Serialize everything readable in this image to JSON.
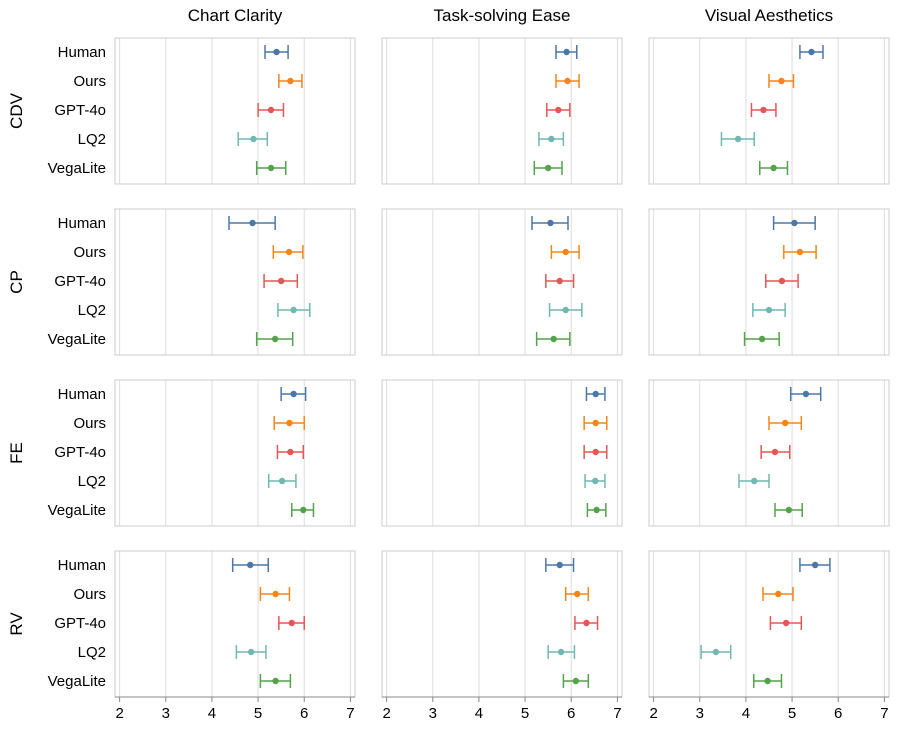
{
  "chart_data": {
    "type": "errorbar-grid",
    "columns": [
      "Chart Clarity",
      "Task-solving Ease",
      "Visual Aesthetics"
    ],
    "rows": [
      "CDV",
      "CP",
      "FE",
      "RV"
    ],
    "categories": [
      "Human",
      "Ours",
      "GPT-4o",
      "LQ2",
      "VegaLite"
    ],
    "colors": {
      "Human": "#4c78a8",
      "Ours": "#f58518",
      "GPT-4o": "#e45756",
      "LQ2": "#72b7b2",
      "VegaLite": "#54a24b"
    },
    "x_ticks": [
      "2",
      "3",
      "4",
      "5",
      "6",
      "7"
    ],
    "xlim": [
      1.9,
      7.1
    ],
    "grid_color": "#dddddd",
    "frame_color": "#cccccc",
    "panels": [
      {
        "row": "CDV",
        "col": "Chart Clarity",
        "points": [
          {
            "cat": "Human",
            "mean": 5.4,
            "lo": 5.15,
            "hi": 5.65
          },
          {
            "cat": "Ours",
            "mean": 5.7,
            "lo": 5.45,
            "hi": 5.95
          },
          {
            "cat": "GPT-4o",
            "mean": 5.28,
            "lo": 5.0,
            "hi": 5.55
          },
          {
            "cat": "LQ2",
            "mean": 4.9,
            "lo": 4.57,
            "hi": 5.2
          },
          {
            "cat": "VegaLite",
            "mean": 5.28,
            "lo": 4.97,
            "hi": 5.6
          }
        ]
      },
      {
        "row": "CDV",
        "col": "Task-solving Ease",
        "points": [
          {
            "cat": "Human",
            "mean": 5.9,
            "lo": 5.67,
            "hi": 6.12
          },
          {
            "cat": "Ours",
            "mean": 5.92,
            "lo": 5.67,
            "hi": 6.17
          },
          {
            "cat": "GPT-4o",
            "mean": 5.72,
            "lo": 5.47,
            "hi": 5.97
          },
          {
            "cat": "LQ2",
            "mean": 5.57,
            "lo": 5.3,
            "hi": 5.83
          },
          {
            "cat": "VegaLite",
            "mean": 5.5,
            "lo": 5.2,
            "hi": 5.8
          }
        ]
      },
      {
        "row": "CDV",
        "col": "Visual Aesthetics",
        "points": [
          {
            "cat": "Human",
            "mean": 5.42,
            "lo": 5.17,
            "hi": 5.67
          },
          {
            "cat": "Ours",
            "mean": 4.77,
            "lo": 4.5,
            "hi": 5.03
          },
          {
            "cat": "GPT-4o",
            "mean": 4.38,
            "lo": 4.12,
            "hi": 4.65
          },
          {
            "cat": "LQ2",
            "mean": 3.83,
            "lo": 3.47,
            "hi": 4.18
          },
          {
            "cat": "VegaLite",
            "mean": 4.6,
            "lo": 4.3,
            "hi": 4.9
          }
        ]
      },
      {
        "row": "CP",
        "col": "Chart Clarity",
        "points": [
          {
            "cat": "Human",
            "mean": 4.88,
            "lo": 4.37,
            "hi": 5.37
          },
          {
            "cat": "Ours",
            "mean": 5.67,
            "lo": 5.33,
            "hi": 5.97
          },
          {
            "cat": "GPT-4o",
            "mean": 5.5,
            "lo": 5.13,
            "hi": 5.85
          },
          {
            "cat": "LQ2",
            "mean": 5.77,
            "lo": 5.43,
            "hi": 6.12
          },
          {
            "cat": "VegaLite",
            "mean": 5.37,
            "lo": 4.97,
            "hi": 5.75
          }
        ]
      },
      {
        "row": "CP",
        "col": "Task-solving Ease",
        "points": [
          {
            "cat": "Human",
            "mean": 5.55,
            "lo": 5.15,
            "hi": 5.93
          },
          {
            "cat": "Ours",
            "mean": 5.88,
            "lo": 5.57,
            "hi": 6.17
          },
          {
            "cat": "GPT-4o",
            "mean": 5.75,
            "lo": 5.45,
            "hi": 6.05
          },
          {
            "cat": "LQ2",
            "mean": 5.88,
            "lo": 5.53,
            "hi": 6.23
          },
          {
            "cat": "VegaLite",
            "mean": 5.62,
            "lo": 5.25,
            "hi": 5.97
          }
        ]
      },
      {
        "row": "CP",
        "col": "Visual Aesthetics",
        "points": [
          {
            "cat": "Human",
            "mean": 5.05,
            "lo": 4.6,
            "hi": 5.5
          },
          {
            "cat": "Ours",
            "mean": 5.17,
            "lo": 4.82,
            "hi": 5.52
          },
          {
            "cat": "GPT-4o",
            "mean": 4.78,
            "lo": 4.43,
            "hi": 5.13
          },
          {
            "cat": "LQ2",
            "mean": 4.5,
            "lo": 4.15,
            "hi": 4.85
          },
          {
            "cat": "VegaLite",
            "mean": 4.35,
            "lo": 3.97,
            "hi": 4.72
          }
        ]
      },
      {
        "row": "FE",
        "col": "Chart Clarity",
        "points": [
          {
            "cat": "Human",
            "mean": 5.77,
            "lo": 5.5,
            "hi": 6.03
          },
          {
            "cat": "Ours",
            "mean": 5.68,
            "lo": 5.35,
            "hi": 6.0
          },
          {
            "cat": "GPT-4o",
            "mean": 5.7,
            "lo": 5.42,
            "hi": 5.98
          },
          {
            "cat": "LQ2",
            "mean": 5.52,
            "lo": 5.23,
            "hi": 5.82
          },
          {
            "cat": "VegaLite",
            "mean": 5.98,
            "lo": 5.73,
            "hi": 6.2
          }
        ]
      },
      {
        "row": "FE",
        "col": "Task-solving Ease",
        "points": [
          {
            "cat": "Human",
            "mean": 6.53,
            "lo": 6.33,
            "hi": 6.73
          },
          {
            "cat": "Ours",
            "mean": 6.53,
            "lo": 6.28,
            "hi": 6.77
          },
          {
            "cat": "GPT-4o",
            "mean": 6.53,
            "lo": 6.28,
            "hi": 6.77
          },
          {
            "cat": "LQ2",
            "mean": 6.52,
            "lo": 6.3,
            "hi": 6.73
          },
          {
            "cat": "VegaLite",
            "mean": 6.55,
            "lo": 6.35,
            "hi": 6.75
          }
        ]
      },
      {
        "row": "FE",
        "col": "Visual Aesthetics",
        "points": [
          {
            "cat": "Human",
            "mean": 5.3,
            "lo": 4.97,
            "hi": 5.62
          },
          {
            "cat": "Ours",
            "mean": 4.85,
            "lo": 4.5,
            "hi": 5.2
          },
          {
            "cat": "GPT-4o",
            "mean": 4.63,
            "lo": 4.33,
            "hi": 4.95
          },
          {
            "cat": "LQ2",
            "mean": 4.18,
            "lo": 3.85,
            "hi": 4.5
          },
          {
            "cat": "VegaLite",
            "mean": 4.93,
            "lo": 4.63,
            "hi": 5.22
          }
        ]
      },
      {
        "row": "RV",
        "col": "Chart Clarity",
        "points": [
          {
            "cat": "Human",
            "mean": 4.83,
            "lo": 4.45,
            "hi": 5.22
          },
          {
            "cat": "Ours",
            "mean": 5.38,
            "lo": 5.05,
            "hi": 5.68
          },
          {
            "cat": "GPT-4o",
            "mean": 5.73,
            "lo": 5.45,
            "hi": 6.0
          },
          {
            "cat": "LQ2",
            "mean": 4.85,
            "lo": 4.53,
            "hi": 5.17
          },
          {
            "cat": "VegaLite",
            "mean": 5.38,
            "lo": 5.05,
            "hi": 5.7
          }
        ]
      },
      {
        "row": "RV",
        "col": "Task-solving Ease",
        "points": [
          {
            "cat": "Human",
            "mean": 5.75,
            "lo": 5.45,
            "hi": 6.05
          },
          {
            "cat": "Ours",
            "mean": 6.13,
            "lo": 5.88,
            "hi": 6.37
          },
          {
            "cat": "GPT-4o",
            "mean": 6.33,
            "lo": 6.08,
            "hi": 6.57
          },
          {
            "cat": "LQ2",
            "mean": 5.78,
            "lo": 5.5,
            "hi": 6.07
          },
          {
            "cat": "VegaLite",
            "mean": 6.1,
            "lo": 5.83,
            "hi": 6.37
          }
        ]
      },
      {
        "row": "RV",
        "col": "Visual Aesthetics",
        "points": [
          {
            "cat": "Human",
            "mean": 5.5,
            "lo": 5.17,
            "hi": 5.82
          },
          {
            "cat": "Ours",
            "mean": 4.7,
            "lo": 4.37,
            "hi": 5.02
          },
          {
            "cat": "GPT-4o",
            "mean": 4.87,
            "lo": 4.53,
            "hi": 5.2
          },
          {
            "cat": "LQ2",
            "mean": 3.35,
            "lo": 3.03,
            "hi": 3.67
          },
          {
            "cat": "VegaLite",
            "mean": 4.47,
            "lo": 4.17,
            "hi": 4.77
          }
        ]
      }
    ]
  }
}
